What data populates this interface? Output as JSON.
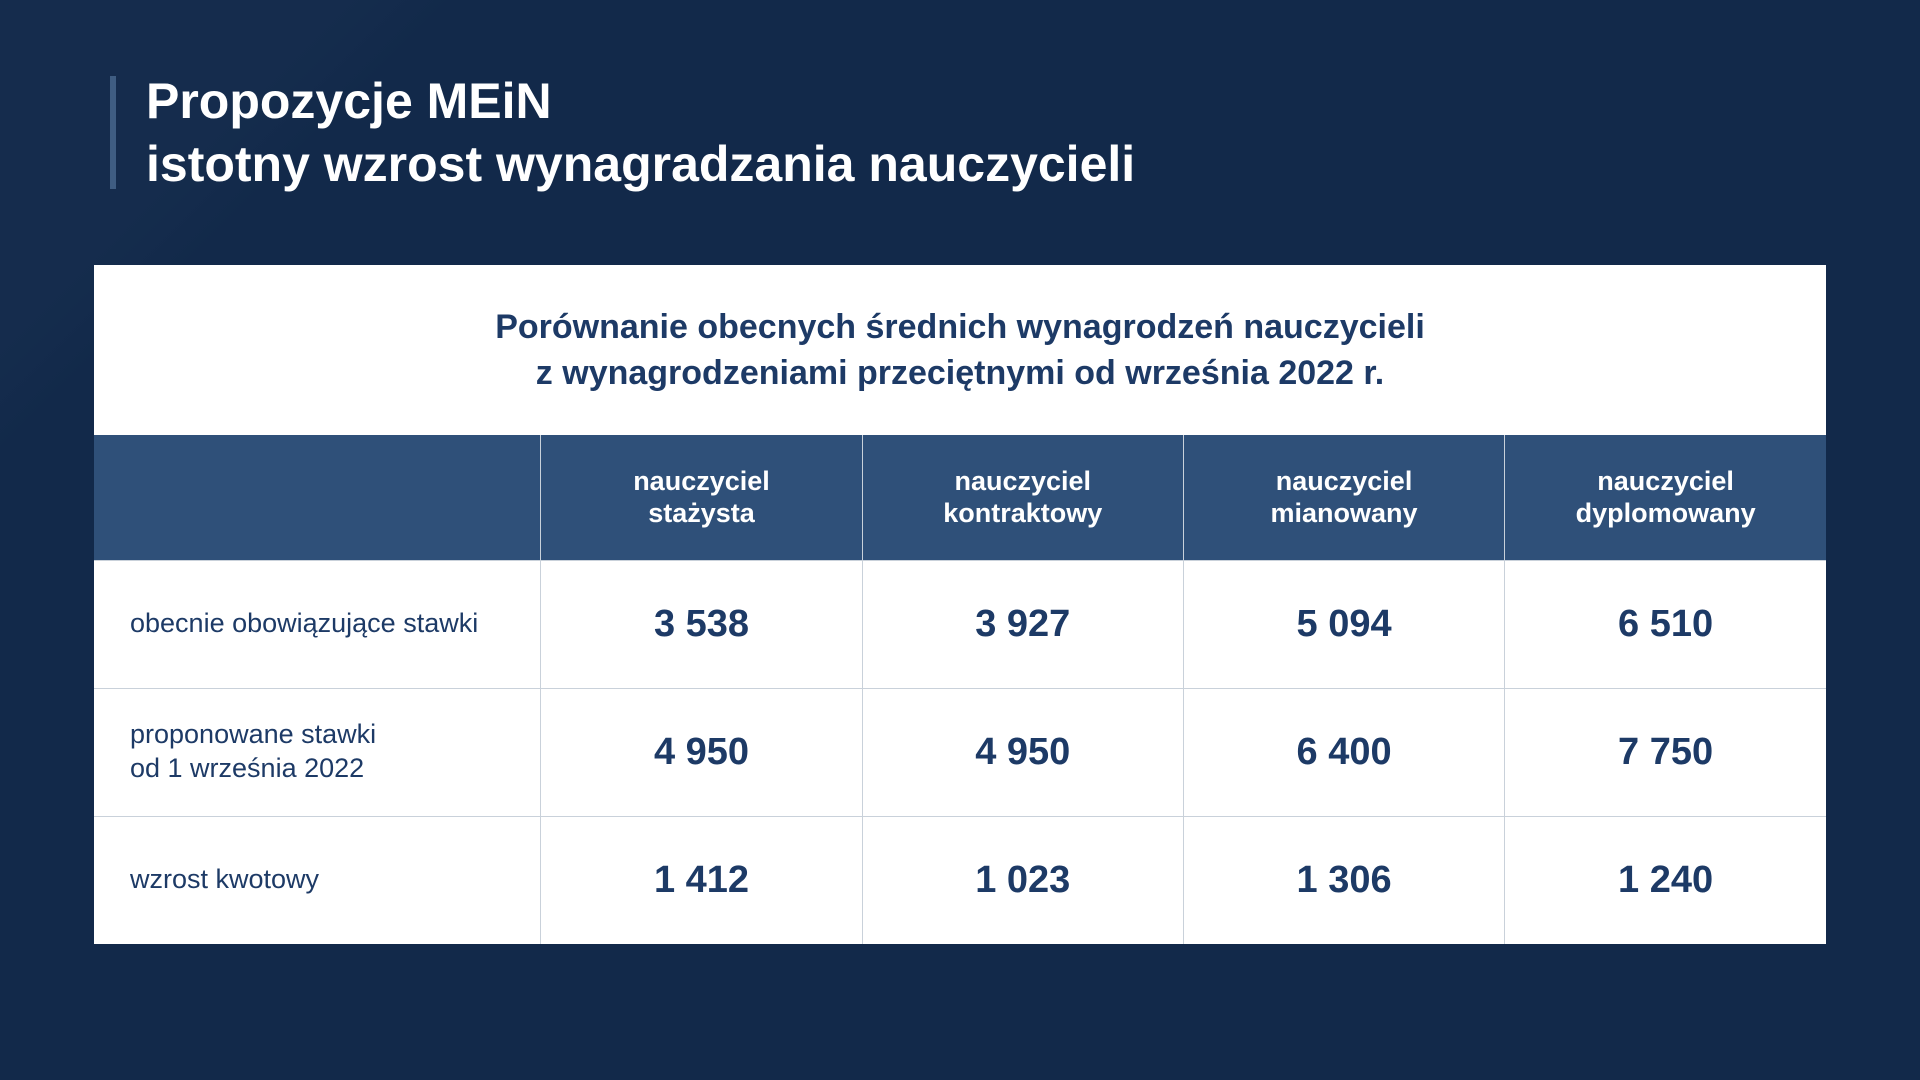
{
  "colors": {
    "slide_bg": "#12294a",
    "diag_accent": "#183050",
    "title_text": "#ffffff",
    "title_bar": "#3f5d82",
    "card_bg": "#ffffff",
    "card_title_text": "#1d3a66",
    "table_header_bg": "#2f5079",
    "table_header_text": "#ffffff",
    "cell_text": "#1d3a66",
    "border": "#c9d1da"
  },
  "typography": {
    "title_fontsize": 50,
    "card_title_fontsize": 34,
    "header_fontsize": 27,
    "row_label_fontsize": 27,
    "value_fontsize": 38,
    "font_family": "Segoe UI / Helvetica Neue"
  },
  "title": {
    "line1": "Propozycje MEiN",
    "line2": "istotny wzrost wynagradzania nauczycieli"
  },
  "card": {
    "title_line1": "Porównanie obecnych średnich wynagrodzeń nauczycieli",
    "title_line2": "z wynagrodzeniami przeciętnymi od września 2022 r."
  },
  "table": {
    "type": "table",
    "col_widths_pct": [
      25.8,
      18.55,
      18.55,
      18.55,
      18.55
    ],
    "columns": [
      {
        "line1": "",
        "line2": ""
      },
      {
        "line1": "nauczyciel",
        "line2": "stażysta"
      },
      {
        "line1": "nauczyciel",
        "line2": "kontraktowy"
      },
      {
        "line1": "nauczyciel",
        "line2": "mianowany"
      },
      {
        "line1": "nauczyciel",
        "line2": "dyplomowany"
      }
    ],
    "rows": [
      {
        "label_line1": "obecnie obowiązujące stawki",
        "label_line2": "",
        "values": [
          "3 538",
          "3 927",
          "5 094",
          "6 510"
        ]
      },
      {
        "label_line1": "proponowane stawki",
        "label_line2": "od 1 września 2022",
        "values": [
          "4 950",
          "4 950",
          "6 400",
          "7 750"
        ]
      },
      {
        "label_line1": "wzrost kwotowy",
        "label_line2": "",
        "values": [
          "1 412",
          "1 023",
          "1 306",
          "1 240"
        ]
      }
    ]
  }
}
